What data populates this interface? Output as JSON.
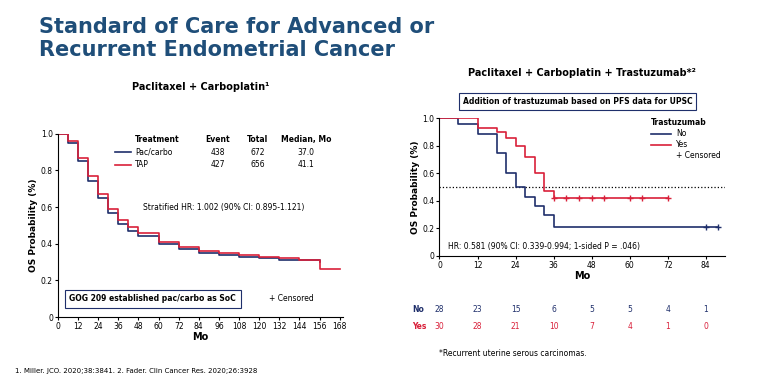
{
  "title": [
    "Standard of Care for Advanced or",
    "Recurrent Endometrial Cancer"
  ],
  "footnote": "1. Miller. JCO. 2020;38:3841. 2. Fader. Clin Cancer Res. 2020;26:3928",
  "chart_data": [
    {
      "type": "line",
      "title": "Paclitaxel + Carboplatin¹",
      "x_label": "Mo",
      "y_label": "OS Probability (%)",
      "line_style": "step",
      "x": [
        0,
        6,
        12,
        18,
        24,
        30,
        36,
        42,
        48,
        60,
        72,
        84,
        96,
        108,
        120,
        132,
        144,
        156,
        168
      ],
      "series": [
        {
          "name": "Pac/carbo",
          "color": "#1f2f6b",
          "values": [
            1.0,
            0.95,
            0.85,
            0.74,
            0.65,
            0.57,
            0.51,
            0.47,
            0.44,
            0.4,
            0.37,
            0.35,
            0.34,
            0.33,
            0.32,
            0.31,
            0.31,
            0.3,
            null
          ]
        },
        {
          "name": "TAP",
          "color": "#d9203a",
          "values": [
            1.0,
            0.96,
            0.87,
            0.77,
            0.67,
            0.59,
            0.53,
            0.49,
            0.46,
            0.41,
            0.38,
            0.36,
            0.35,
            0.34,
            0.33,
            0.32,
            0.31,
            0.26,
            0.26
          ]
        }
      ],
      "xlim": [
        0,
        170
      ],
      "ylim": [
        0,
        1.0
      ],
      "xticks": [
        0,
        12,
        24,
        36,
        48,
        60,
        72,
        84,
        96,
        108,
        120,
        132,
        144,
        156,
        168
      ],
      "yticks": [
        0,
        0.2,
        0.4,
        0.6,
        0.8,
        1.0
      ],
      "legend_table": {
        "header": [
          "Treatment",
          "Event",
          "Total",
          "Median, Mo"
        ],
        "rows": [
          [
            "Pac/carbo",
            438,
            672,
            37.0
          ],
          [
            "TAP",
            427,
            656,
            41.1
          ]
        ]
      },
      "hr_text": "Stratified HR: 1.002 (90% CI: 0.895-1.121)",
      "box_text": "GOG 209 established pac/carbo as SoC",
      "censored_label": "+ Censored"
    },
    {
      "type": "line",
      "title": "Paclitaxel + Carboplatin + Trastuzumab*²",
      "x_label": "Mo",
      "y_label": "OS Probability (%)",
      "line_style": "step",
      "x": [
        0,
        6,
        12,
        18,
        21,
        24,
        27,
        30,
        33,
        36,
        48,
        60,
        72,
        84,
        88
      ],
      "series": [
        {
          "name": "No",
          "color": "#1f2f6b",
          "values": [
            1.0,
            0.96,
            0.89,
            0.75,
            0.6,
            0.5,
            0.43,
            0.36,
            0.3,
            0.21,
            0.21,
            0.21,
            0.21,
            0.21,
            0.21
          ],
          "censored": [
            84,
            88
          ]
        },
        {
          "name": "Yes",
          "color": "#d9203a",
          "values": [
            1.0,
            1.0,
            0.93,
            0.9,
            0.86,
            0.8,
            0.72,
            0.6,
            0.47,
            0.42,
            0.42,
            0.42,
            0.42,
            null,
            null
          ],
          "censored": [
            36,
            40,
            44,
            48,
            52,
            60,
            64,
            72
          ]
        }
      ],
      "median_line": 0.5,
      "xlim": [
        0,
        90
      ],
      "ylim": [
        0,
        1.0
      ],
      "xticks": [
        0,
        12,
        24,
        36,
        48,
        60,
        72,
        84
      ],
      "yticks": [
        0,
        0.2,
        0.4,
        0.6,
        0.8,
        1.0
      ],
      "legend_title": "Trastuzumab",
      "censored_label": "+ Censored",
      "box_text": "Addition of trastuzumab based on PFS data for UPSC",
      "hr_text": "HR: 0.581 (90% CI: 0.339-0.994; 1-sided P = .046)",
      "risk_table": [
        {
          "name": "No",
          "values": [
            28,
            23,
            15,
            6,
            5,
            5,
            4,
            1
          ]
        },
        {
          "name": "Yes",
          "values": [
            30,
            28,
            21,
            10,
            7,
            4,
            1,
            0
          ]
        }
      ],
      "footnote": "*Recurrent uterine serous carcinomas."
    }
  ]
}
